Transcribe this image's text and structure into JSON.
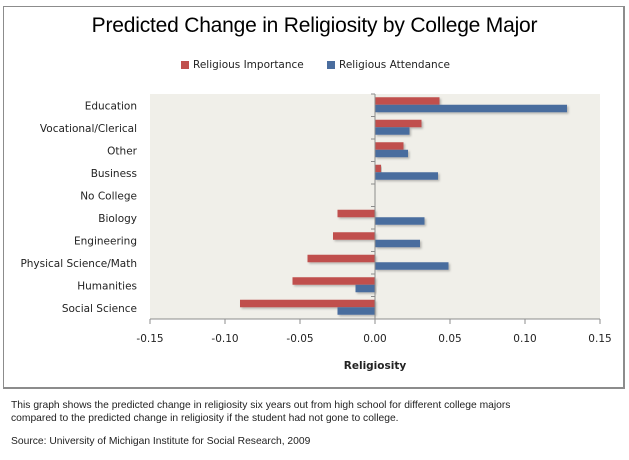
{
  "chart_data": {
    "type": "bar",
    "orientation": "horizontal",
    "title": "Predicted Change in Religiosity by College Major",
    "xlabel": "Religiosity",
    "ylabel": "",
    "xlim": [
      -0.15,
      0.15
    ],
    "xticks": [
      -0.15,
      -0.1,
      -0.05,
      0.0,
      0.05,
      0.1,
      0.15
    ],
    "xtick_labels": [
      "-0.15",
      "-0.10",
      "-0.05",
      "0.00",
      "0.05",
      "0.10",
      "0.15"
    ],
    "grid": false,
    "legend_position": "top",
    "categories": [
      "Education",
      "Vocational/Clerical",
      "Other",
      "Business",
      "No College",
      "Biology",
      "Engineering",
      "Physical Science/Math",
      "Humanities",
      "Social Science"
    ],
    "series": [
      {
        "name": "Religious Importance",
        "color": "#C0504D",
        "values": [
          0.043,
          0.031,
          0.019,
          0.004,
          0.0,
          -0.025,
          -0.028,
          -0.045,
          -0.055,
          -0.09
        ]
      },
      {
        "name": "Religious Attendance",
        "color": "#4A6D9E",
        "values": [
          0.128,
          0.023,
          0.022,
          0.042,
          0.0,
          0.033,
          0.03,
          0.049,
          -0.013,
          -0.025
        ]
      }
    ]
  },
  "caption": {
    "line1": "This graph shows the predicted change in religiosity six years out from high school for different college majors",
    "line2": "compared to the predicted change in religiosity if the student had not gone to college.",
    "source": "Source:  University of Michigan Institute for Social Research, 2009"
  },
  "colors": {
    "plot_background": "#F0EFE9",
    "axis": "#8C8C8C"
  }
}
